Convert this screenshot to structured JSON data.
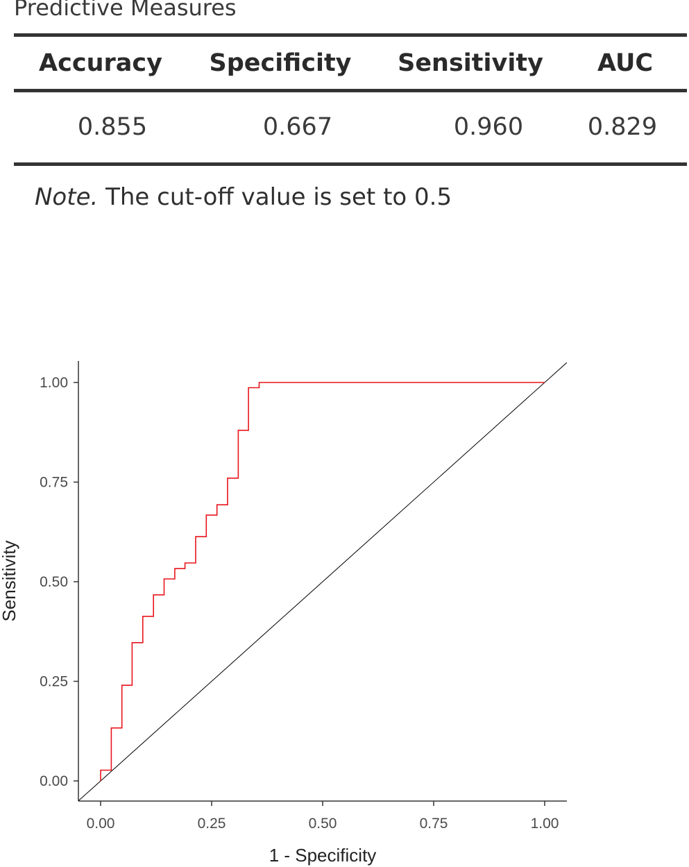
{
  "table": {
    "title": "Predictive Measures",
    "columns": [
      "Accuracy",
      "Specificity",
      "Sensitivity",
      "AUC"
    ],
    "values": [
      "0.855",
      "0.667",
      "0.960",
      "0.829"
    ],
    "note_label": "Note.",
    "note_text": " The cut-off value is set to 0.5"
  },
  "chart_data": {
    "type": "line",
    "title": "",
    "xlabel": "1 - Specificity",
    "ylabel": "Sensitivity",
    "xlim": [
      0,
      1
    ],
    "ylim": [
      0,
      1
    ],
    "x_ticks": [
      "0.00",
      "0.25",
      "0.50",
      "0.75",
      "1.00"
    ],
    "y_ticks": [
      "0.00",
      "0.25",
      "0.50",
      "0.75",
      "1.00"
    ],
    "grid": false,
    "legend": "none",
    "series": [
      {
        "style": "step",
        "color": "#e8141c",
        "x": [
          0.0,
          0.0,
          0.024,
          0.024,
          0.048,
          0.048,
          0.071,
          0.071,
          0.095,
          0.095,
          0.119,
          0.119,
          0.143,
          0.143,
          0.167,
          0.167,
          0.19,
          0.19,
          0.214,
          0.214,
          0.238,
          0.238,
          0.262,
          0.262,
          0.286,
          0.286,
          0.31,
          0.31,
          0.333,
          0.333,
          0.357,
          0.357,
          1.0
        ],
        "y": [
          0.0,
          0.027,
          0.027,
          0.133,
          0.133,
          0.24,
          0.24,
          0.347,
          0.347,
          0.413,
          0.413,
          0.467,
          0.467,
          0.507,
          0.507,
          0.533,
          0.533,
          0.547,
          0.547,
          0.613,
          0.613,
          0.667,
          0.667,
          0.693,
          0.693,
          0.76,
          0.76,
          0.88,
          0.88,
          0.987,
          0.987,
          1.0,
          1.0
        ]
      },
      {
        "style": "diagonal",
        "color": "#000000",
        "x": [
          -0.05,
          1.05
        ],
        "y": [
          -0.05,
          1.05
        ]
      }
    ]
  }
}
